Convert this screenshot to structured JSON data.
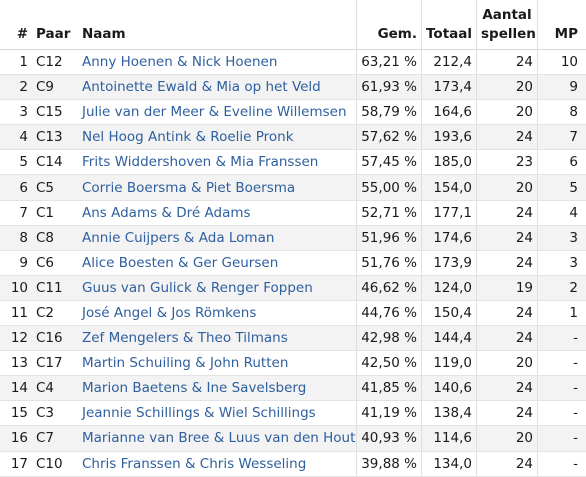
{
  "headers": {
    "num": "#",
    "paar": "Paar",
    "naam": "Naam",
    "gem": "Gem.",
    "totaal": "Totaal",
    "spellen_line1": "Aantal",
    "spellen_line2": "spellen",
    "mp": "MP"
  },
  "rows": [
    {
      "num": "1",
      "paar": "C12",
      "naam": "Anny Hoenen & Nick Hoenen",
      "gem": "63,21 %",
      "totaal": "212,4",
      "spellen": "24",
      "mp": "10"
    },
    {
      "num": "2",
      "paar": "C9",
      "naam": "Antoinette Ewald & Mia op het Veld",
      "gem": "61,93 %",
      "totaal": "173,4",
      "spellen": "20",
      "mp": "9"
    },
    {
      "num": "3",
      "paar": "C15",
      "naam": "Julie van der Meer & Eveline Willemsen",
      "gem": "58,79 %",
      "totaal": "164,6",
      "spellen": "20",
      "mp": "8"
    },
    {
      "num": "4",
      "paar": "C13",
      "naam": "Nel Hoog Antink & Roelie Pronk",
      "gem": "57,62 %",
      "totaal": "193,6",
      "spellen": "24",
      "mp": "7"
    },
    {
      "num": "5",
      "paar": "C14",
      "naam": "Frits Widdershoven & Mia Franssen",
      "gem": "57,45 %",
      "totaal": "185,0",
      "spellen": "23",
      "mp": "6"
    },
    {
      "num": "6",
      "paar": "C5",
      "naam": "Corrie Boersma & Piet Boersma",
      "gem": "55,00 %",
      "totaal": "154,0",
      "spellen": "20",
      "mp": "5"
    },
    {
      "num": "7",
      "paar": "C1",
      "naam": "Ans Adams & Dré Adams",
      "gem": "52,71 %",
      "totaal": "177,1",
      "spellen": "24",
      "mp": "4"
    },
    {
      "num": "8",
      "paar": "C8",
      "naam": "Annie Cuijpers & Ada Loman",
      "gem": "51,96 %",
      "totaal": "174,6",
      "spellen": "24",
      "mp": "3"
    },
    {
      "num": "9",
      "paar": "C6",
      "naam": "Alice Boesten & Ger Geursen",
      "gem": "51,76 %",
      "totaal": "173,9",
      "spellen": "24",
      "mp": "3"
    },
    {
      "num": "10",
      "paar": "C11",
      "naam": "Guus van Gulick & Renger Foppen",
      "gem": "46,62 %",
      "totaal": "124,0",
      "spellen": "19",
      "mp": "2"
    },
    {
      "num": "11",
      "paar": "C2",
      "naam": "José Angel & Jos Römkens",
      "gem": "44,76 %",
      "totaal": "150,4",
      "spellen": "24",
      "mp": "1"
    },
    {
      "num": "12",
      "paar": "C16",
      "naam": "Zef Mengelers & Theo Tilmans",
      "gem": "42,98 %",
      "totaal": "144,4",
      "spellen": "24",
      "mp": "-"
    },
    {
      "num": "13",
      "paar": "C17",
      "naam": "Martin Schuiling & John Rutten",
      "gem": "42,50 %",
      "totaal": "119,0",
      "spellen": "20",
      "mp": "-"
    },
    {
      "num": "14",
      "paar": "C4",
      "naam": "Marion Baetens & Ine Savelsberg",
      "gem": "41,85 %",
      "totaal": "140,6",
      "spellen": "24",
      "mp": "-"
    },
    {
      "num": "15",
      "paar": "C3",
      "naam": "Jeannie Schillings & Wiel Schillings",
      "gem": "41,19 %",
      "totaal": "138,4",
      "spellen": "24",
      "mp": "-"
    },
    {
      "num": "16",
      "paar": "C7",
      "naam": "Marianne van Bree & Luus van den Hout",
      "gem": "40,93 %",
      "totaal": "114,6",
      "spellen": "20",
      "mp": "-"
    },
    {
      "num": "17",
      "paar": "C10",
      "naam": "Chris Franssen & Chris Wesseling",
      "gem": "39,88 %",
      "totaal": "134,0",
      "spellen": "24",
      "mp": "-"
    }
  ]
}
